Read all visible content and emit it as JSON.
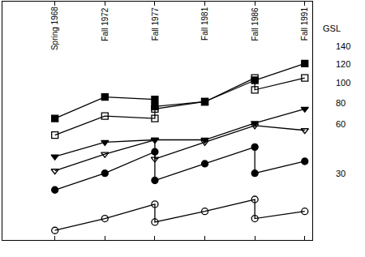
{
  "chart_data": {
    "type": "line",
    "categories": [
      "Spring 1968",
      "Fall 1972",
      "Fall 1977",
      "Fall 1981",
      "Fall 1986",
      "Fall 1991"
    ],
    "legend_title": "GSL",
    "tick_labels": false,
    "grid": false,
    "ylim": [
      0,
      100
    ],
    "series": [
      {
        "name": "140",
        "color": "#000000",
        "marker": "square",
        "x": [
          "Spring 1968",
          "Fall 1972",
          "Fall 1977",
          "Fall 1977",
          "Fall 1981",
          "Fall 1986",
          "Fall 1991"
        ],
        "values": [
          51,
          60,
          59,
          56,
          58,
          67,
          74
        ]
      },
      {
        "name": "120",
        "color": "#000000",
        "marker": "square-open",
        "x": [
          "Spring 1968",
          "Fall 1972",
          "Fall 1977",
          "Fall 1977",
          "Fall 1981",
          "Fall 1986",
          "Fall 1986",
          "Fall 1991"
        ],
        "values": [
          44,
          52,
          51,
          55,
          58,
          68,
          63,
          68
        ]
      },
      {
        "name": "100",
        "color": "#000000",
        "marker": "triangle-down",
        "x": [
          "Spring 1968",
          "Fall 1972",
          "Fall 1977",
          "Fall 1981",
          "Fall 1986",
          "Fall 1991"
        ],
        "values": [
          35,
          41,
          42,
          42,
          49,
          55
        ]
      },
      {
        "name": "80",
        "color": "#000000",
        "marker": "triangle-down-open",
        "x": [
          "Spring 1968",
          "Fall 1972",
          "Fall 1977",
          "Fall 1977",
          "Fall 1981",
          "Fall 1986",
          "Fall 1991"
        ],
        "values": [
          29,
          36,
          42,
          34,
          41,
          48,
          46
        ]
      },
      {
        "name": "60",
        "color": "#000000",
        "marker": "circle",
        "x": [
          "Spring 1968",
          "Fall 1972",
          "Fall 1977",
          "Fall 1977",
          "Fall 1981",
          "Fall 1986",
          "Fall 1986",
          "Fall 1991"
        ],
        "values": [
          21,
          28,
          37,
          25,
          32,
          39,
          28,
          33
        ]
      },
      {
        "name": "30",
        "color": "#000000",
        "marker": "circle-open",
        "x": [
          "Spring 1968",
          "Fall 1972",
          "Fall 1977",
          "Fall 1977",
          "Fall 1981",
          "Fall 1986",
          "Fall 1986",
          "Fall 1991"
        ],
        "values": [
          4,
          9,
          15,
          7.5,
          12,
          17,
          9,
          12
        ]
      }
    ]
  }
}
